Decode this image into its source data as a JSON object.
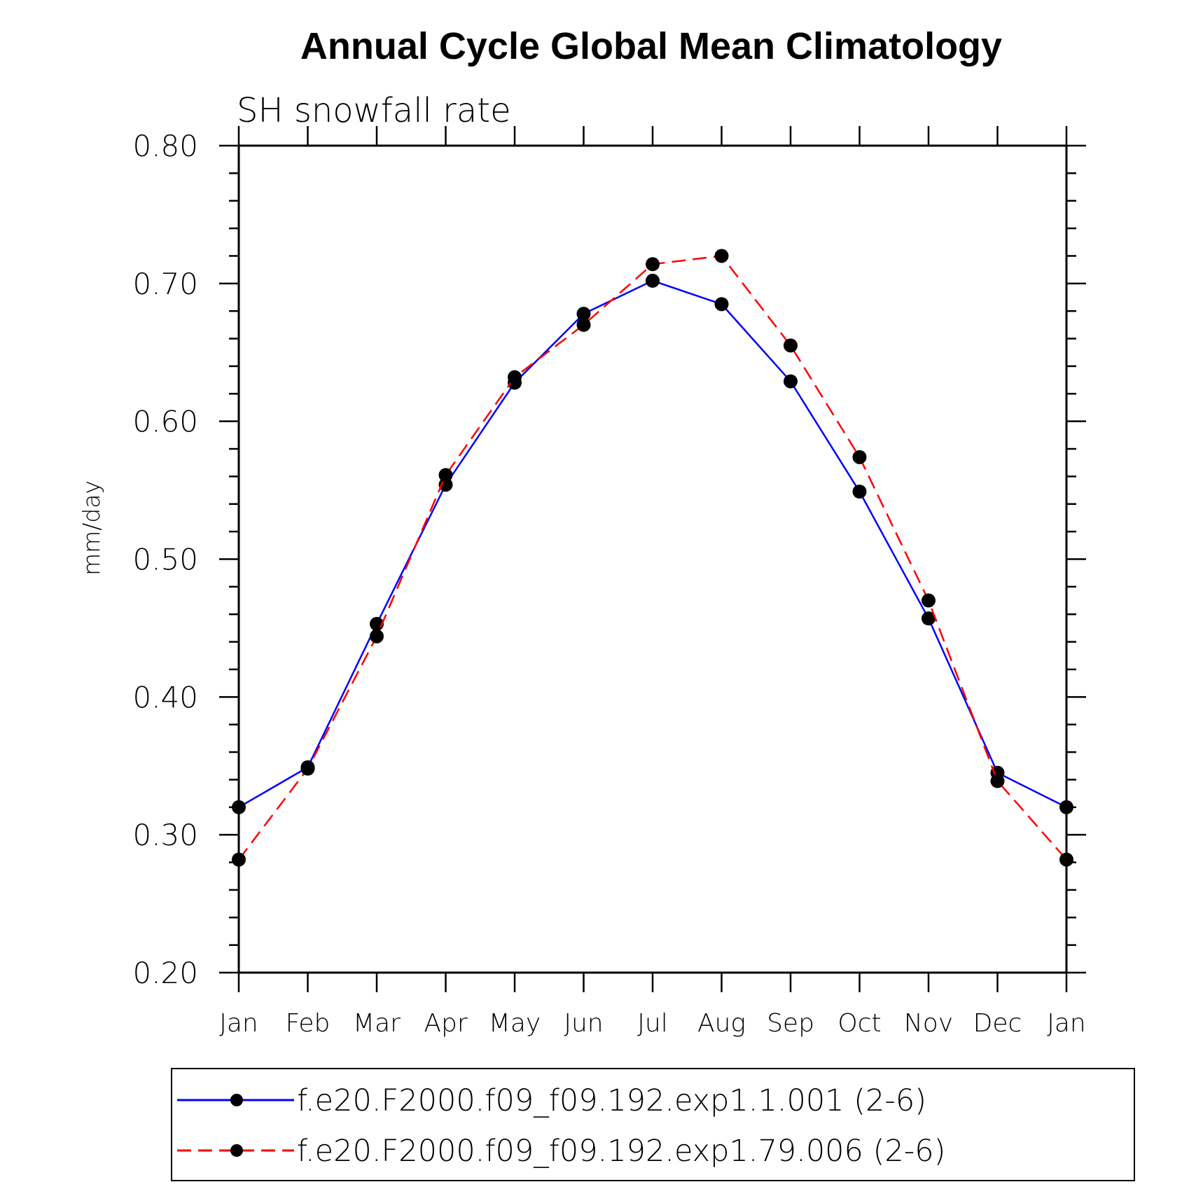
{
  "chart_data": {
    "type": "line",
    "title": "Annual Cycle Global Mean Climatology",
    "subtitle": "SH snowfall rate",
    "ylabel": "mm/day",
    "xlabel": "",
    "ylim": [
      0.2,
      0.8
    ],
    "y_ticks": [
      "0.20",
      "0.30",
      "0.40",
      "0.50",
      "0.60",
      "0.70",
      "0.80"
    ],
    "categories": [
      "Jan",
      "Feb",
      "Mar",
      "Apr",
      "May",
      "Jun",
      "Jul",
      "Aug",
      "Sep",
      "Oct",
      "Nov",
      "Dec",
      "Jan"
    ],
    "grid": false,
    "legend_position": "bottom",
    "series": [
      {
        "name": "f.e20.F2000.f09_f09.192.exp1.1.001 (2-6)",
        "color": "#0000ff",
        "dash": "solid",
        "marker": "filled-circle",
        "values": [
          0.32,
          0.349,
          0.453,
          0.554,
          0.628,
          0.678,
          0.702,
          0.685,
          0.629,
          0.549,
          0.457,
          0.345,
          0.32
        ]
      },
      {
        "name": "f.e20.F2000.f09_f09.192.exp1.79.006 (2-6)",
        "color": "#ff0000",
        "dash": "dashed",
        "marker": "filled-circle",
        "values": [
          0.282,
          0.348,
          0.444,
          0.561,
          0.632,
          0.67,
          0.714,
          0.72,
          0.655,
          0.574,
          0.47,
          0.339,
          0.282
        ]
      }
    ]
  }
}
